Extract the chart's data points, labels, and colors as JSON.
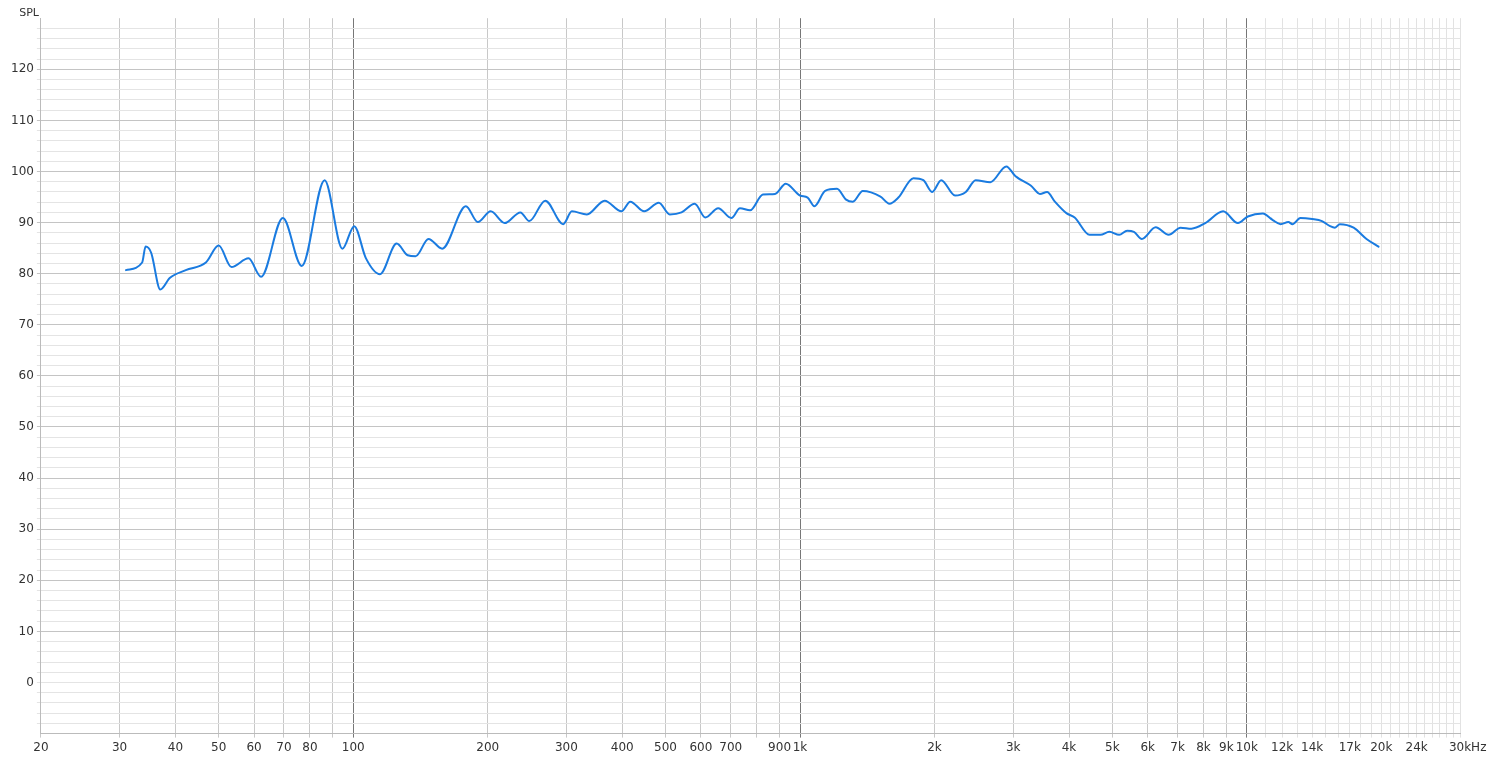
{
  "chart_data": {
    "type": "line",
    "xlabel": "Hz",
    "ylabel": "SPL",
    "log": "x",
    "grid": true,
    "legend": false,
    "marker": "none",
    "line_style": "solid",
    "xlim": [
      20,
      30000
    ],
    "ylim": [
      -10,
      130
    ],
    "xticks": [
      20,
      30,
      40,
      50,
      60,
      70,
      80,
      {
        "value": 90,
        "label": null
      },
      100,
      200,
      300,
      400,
      500,
      600,
      700,
      {
        "value": 800,
        "label": null
      },
      900,
      {
        "value": 1000,
        "label": "1k"
      },
      {
        "value": 2000,
        "label": "2k"
      },
      {
        "value": 3000,
        "label": "3k"
      },
      {
        "value": 4000,
        "label": "4k"
      },
      {
        "value": 5000,
        "label": "5k"
      },
      {
        "value": 6000,
        "label": "6k"
      },
      {
        "value": 7000,
        "label": "7k"
      },
      {
        "value": 8000,
        "label": "8k"
      },
      {
        "value": 9000,
        "label": "9k"
      },
      {
        "value": 10000,
        "label": "10k"
      },
      {
        "value": 11000,
        "label": null
      },
      {
        "value": 12000,
        "label": "12k"
      },
      {
        "value": 13000,
        "label": null
      },
      {
        "value": 14000,
        "label": "14k"
      },
      {
        "value": 15000,
        "label": null
      },
      {
        "value": 16000,
        "label": null
      },
      {
        "value": 17000,
        "label": "17k"
      },
      {
        "value": 18000,
        "label": null
      },
      {
        "value": 19000,
        "label": null
      },
      {
        "value": 20000,
        "label": "20k"
      },
      {
        "value": 21000,
        "label": null
      },
      {
        "value": 22000,
        "label": null
      },
      {
        "value": 23000,
        "label": null
      },
      {
        "value": 24000,
        "label": "24k"
      },
      {
        "value": 25000,
        "label": null
      },
      {
        "value": 26000,
        "label": null
      },
      {
        "value": 27000,
        "label": null
      },
      {
        "value": 28000,
        "label": null
      },
      {
        "value": 29000,
        "label": null
      },
      {
        "value": 30000,
        "label": "30k"
      }
    ],
    "yticks": [
      {
        "value": -8,
        "label": null
      },
      {
        "value": -6,
        "label": null
      },
      {
        "value": -4,
        "label": null
      },
      {
        "value": -2,
        "label": null
      },
      0,
      {
        "value": 2,
        "label": null
      },
      {
        "value": 4,
        "label": null
      },
      {
        "value": 6,
        "label": null
      },
      {
        "value": 8,
        "label": null
      },
      10,
      {
        "value": 12,
        "label": null
      },
      {
        "value": 14,
        "label": null
      },
      {
        "value": 16,
        "label": null
      },
      {
        "value": 18,
        "label": null
      },
      20,
      {
        "value": 22,
        "label": null
      },
      {
        "value": 24,
        "label": null
      },
      {
        "value": 26,
        "label": null
      },
      {
        "value": 28,
        "label": null
      },
      30,
      {
        "value": 32,
        "label": null
      },
      {
        "value": 34,
        "label": null
      },
      {
        "value": 36,
        "label": null
      },
      {
        "value": 38,
        "label": null
      },
      40,
      {
        "value": 42,
        "label": null
      },
      {
        "value": 44,
        "label": null
      },
      {
        "value": 46,
        "label": null
      },
      {
        "value": 48,
        "label": null
      },
      50,
      {
        "value": 52,
        "label": null
      },
      {
        "value": 54,
        "label": null
      },
      {
        "value": 56,
        "label": null
      },
      {
        "value": 58,
        "label": null
      },
      60,
      {
        "value": 62,
        "label": null
      },
      {
        "value": 64,
        "label": null
      },
      {
        "value": 66,
        "label": null
      },
      {
        "value": 68,
        "label": null
      },
      70,
      {
        "value": 72,
        "label": null
      },
      {
        "value": 74,
        "label": null
      },
      {
        "value": 76,
        "label": null
      },
      {
        "value": 78,
        "label": null
      },
      80,
      {
        "value": 82,
        "label": null
      },
      {
        "value": 84,
        "label": null
      },
      {
        "value": 86,
        "label": null
      },
      {
        "value": 88,
        "label": null
      },
      90,
      {
        "value": 92,
        "label": null
      },
      {
        "value": 94,
        "label": null
      },
      {
        "value": 96,
        "label": null
      },
      {
        "value": 98,
        "label": null
      },
      100,
      {
        "value": 102,
        "label": null
      },
      {
        "value": 104,
        "label": null
      },
      {
        "value": 106,
        "label": null
      },
      {
        "value": 108,
        "label": null
      },
      110,
      {
        "value": 112,
        "label": null
      },
      {
        "value": 114,
        "label": null
      },
      {
        "value": 116,
        "label": null
      },
      {
        "value": 118,
        "label": null
      },
      120,
      {
        "value": 122,
        "label": null
      },
      {
        "value": 124,
        "label": null
      },
      {
        "value": 126,
        "label": null
      },
      {
        "value": 128,
        "label": null
      }
    ],
    "series": [
      {
        "color": "#1a7be0",
        "x": [
          31.0,
          33.7,
          34.3,
          35.3,
          37.0,
          38.9,
          42.2,
          46.8,
          50.0,
          53.4,
          58.3,
          62.2,
          69.6,
          76.7,
          86.3,
          94.6,
          100.5,
          106.8,
          114.8,
          125.1,
          132.4,
          137.9,
          147.4,
          158.2,
          178.7,
          190.1,
          203.1,
          218.2,
          236.7,
          247.8,
          269.0,
          295.1,
          308.6,
          333.4,
          365.4,
          398.4,
          417,
          448,
          483,
          511,
          543,
          581,
          614,
          656,
          702,
          734,
          773,
          826,
          879,
          929,
          1000,
          1040,
          1077,
          1138,
          1210,
          1268,
          1313,
          1382,
          1514,
          1585,
          1660,
          1794,
          1888,
          1977,
          2070,
          2223,
          2350,
          2472,
          2667,
          2896,
          3033,
          3289,
          3444,
          3572,
          3719,
          3952,
          4118,
          4446,
          4702,
          4924,
          5180,
          5398,
          5589,
          5822,
          6252,
          6683,
          7107,
          7518,
          8075,
          8850,
          9553,
          10050,
          10860,
          11430,
          11900,
          12390,
          12650,
          13180,
          14000,
          14730,
          15360,
          15750,
          16150,
          17340,
          18530,
          19710
        ],
        "values": [
          80.7,
          82.2,
          85.3,
          84.1,
          76.9,
          79.2,
          80.7,
          82.2,
          85.5,
          81.3,
          83.0,
          79.4,
          90.9,
          81.5,
          98.3,
          84.9,
          89.3,
          83.0,
          79.9,
          85.9,
          83.6,
          83.4,
          86.8,
          84.9,
          93.2,
          90.1,
          92.2,
          89.9,
          92.0,
          90.3,
          94.3,
          89.7,
          92.2,
          91.6,
          94.3,
          92.2,
          94.1,
          92.2,
          93.9,
          91.6,
          92.0,
          93.7,
          91.0,
          92.8,
          90.9,
          92.8,
          92.4,
          95.5,
          95.6,
          97.6,
          95.3,
          94.9,
          93.2,
          96.2,
          96.6,
          94.5,
          94.1,
          96.2,
          95.1,
          93.7,
          94.9,
          98.7,
          98.3,
          96.0,
          98.3,
          95.3,
          96.0,
          98.3,
          97.9,
          101.0,
          99.1,
          97.2,
          95.6,
          96.0,
          94.1,
          91.8,
          91.0,
          87.6,
          87.6,
          88.2,
          87.6,
          88.4,
          88.2,
          86.8,
          89.1,
          87.6,
          89.0,
          88.8,
          89.9,
          92.2,
          89.9,
          91.2,
          91.8,
          90.5,
          89.7,
          90.1,
          89.7,
          90.9,
          90.7,
          90.3,
          89.3,
          89.0,
          89.7,
          89.0,
          86.8,
          85.3
        ]
      }
    ]
  }
}
